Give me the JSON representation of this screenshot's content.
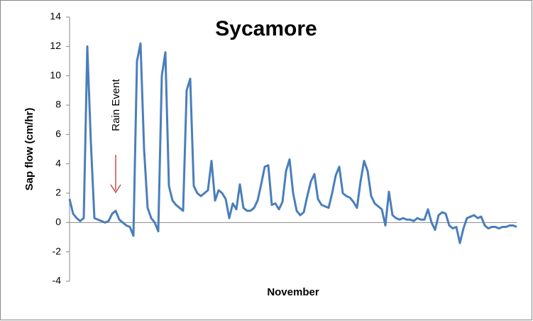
{
  "chart_data": {
    "type": "line",
    "title": "Sycamore",
    "y_label": "Sap flow (cm/hr)",
    "x_label": "November",
    "annotation": "Rain Event",
    "categories": [
      null,
      null,
      null,
      null,
      null,
      null,
      null,
      null,
      null,
      null,
      null,
      null,
      null,
      null,
      null,
      null,
      null,
      null,
      null,
      null,
      null,
      null,
      null,
      null,
      null,
      null,
      null,
      null,
      null,
      null,
      null,
      null,
      null,
      null,
      null,
      null,
      null,
      null,
      null,
      null,
      null,
      null,
      null,
      null,
      null,
      null,
      null,
      null,
      null,
      null,
      null,
      null,
      null,
      null,
      null,
      null,
      null,
      null,
      null,
      null,
      null,
      null,
      null,
      null,
      null,
      null,
      null,
      null,
      null,
      null,
      null,
      null,
      null,
      null,
      null,
      null,
      null,
      null,
      null,
      null,
      null,
      null,
      null,
      null,
      null,
      null,
      null,
      null,
      null,
      null,
      null,
      null,
      null,
      null,
      null,
      null,
      null,
      null,
      null,
      null,
      null,
      null,
      null,
      null,
      null,
      null,
      null,
      null,
      null,
      null,
      null,
      null,
      null,
      null,
      null,
      null,
      null,
      null,
      null,
      null,
      null,
      null,
      null,
      null,
      null,
      null,
      null
    ],
    "series": [
      {
        "name": "Sycamore",
        "color": "#4a7ebb",
        "values": [
          1.6,
          0.6,
          0.3,
          0.1,
          0.3,
          12.0,
          5.5,
          0.3,
          0.2,
          0.1,
          0.0,
          0.1,
          0.6,
          0.8,
          0.2,
          0.0,
          -0.2,
          -0.3,
          -0.9,
          11.0,
          12.2,
          5.0,
          1.0,
          0.3,
          0.0,
          -0.6,
          10.0,
          11.6,
          2.5,
          1.5,
          1.2,
          1.0,
          0.8,
          9.0,
          9.8,
          2.5,
          2.0,
          1.8,
          2.0,
          2.2,
          4.2,
          1.5,
          2.2,
          2.0,
          1.6,
          0.3,
          1.3,
          0.9,
          2.6,
          1.0,
          0.8,
          0.8,
          1.0,
          1.5,
          2.6,
          3.8,
          3.9,
          1.2,
          1.3,
          0.9,
          1.4,
          3.5,
          4.3,
          2.0,
          0.8,
          0.5,
          0.7,
          1.8,
          2.8,
          3.3,
          1.6,
          1.2,
          1.1,
          1.0,
          2.0,
          3.2,
          3.8,
          2.0,
          1.8,
          1.7,
          1.4,
          1.0,
          2.8,
          4.2,
          3.5,
          1.8,
          1.3,
          1.1,
          0.9,
          -0.2,
          2.1,
          0.5,
          0.3,
          0.2,
          0.3,
          0.2,
          0.2,
          0.1,
          0.3,
          0.2,
          0.2,
          0.9,
          0.0,
          -0.5,
          0.5,
          0.7,
          0.6,
          -0.2,
          -0.4,
          -0.3,
          -1.4,
          -0.4,
          0.3,
          0.4,
          0.5,
          0.3,
          0.4,
          -0.2,
          -0.4,
          -0.3,
          -0.3,
          -0.4,
          -0.3,
          -0.3,
          -0.2,
          -0.2,
          -0.3
        ]
      }
    ],
    "ylim": [
      -4,
      14
    ],
    "yticks": [
      -4,
      -2,
      0,
      2,
      4,
      6,
      8,
      10,
      12,
      14
    ],
    "grid": false
  }
}
